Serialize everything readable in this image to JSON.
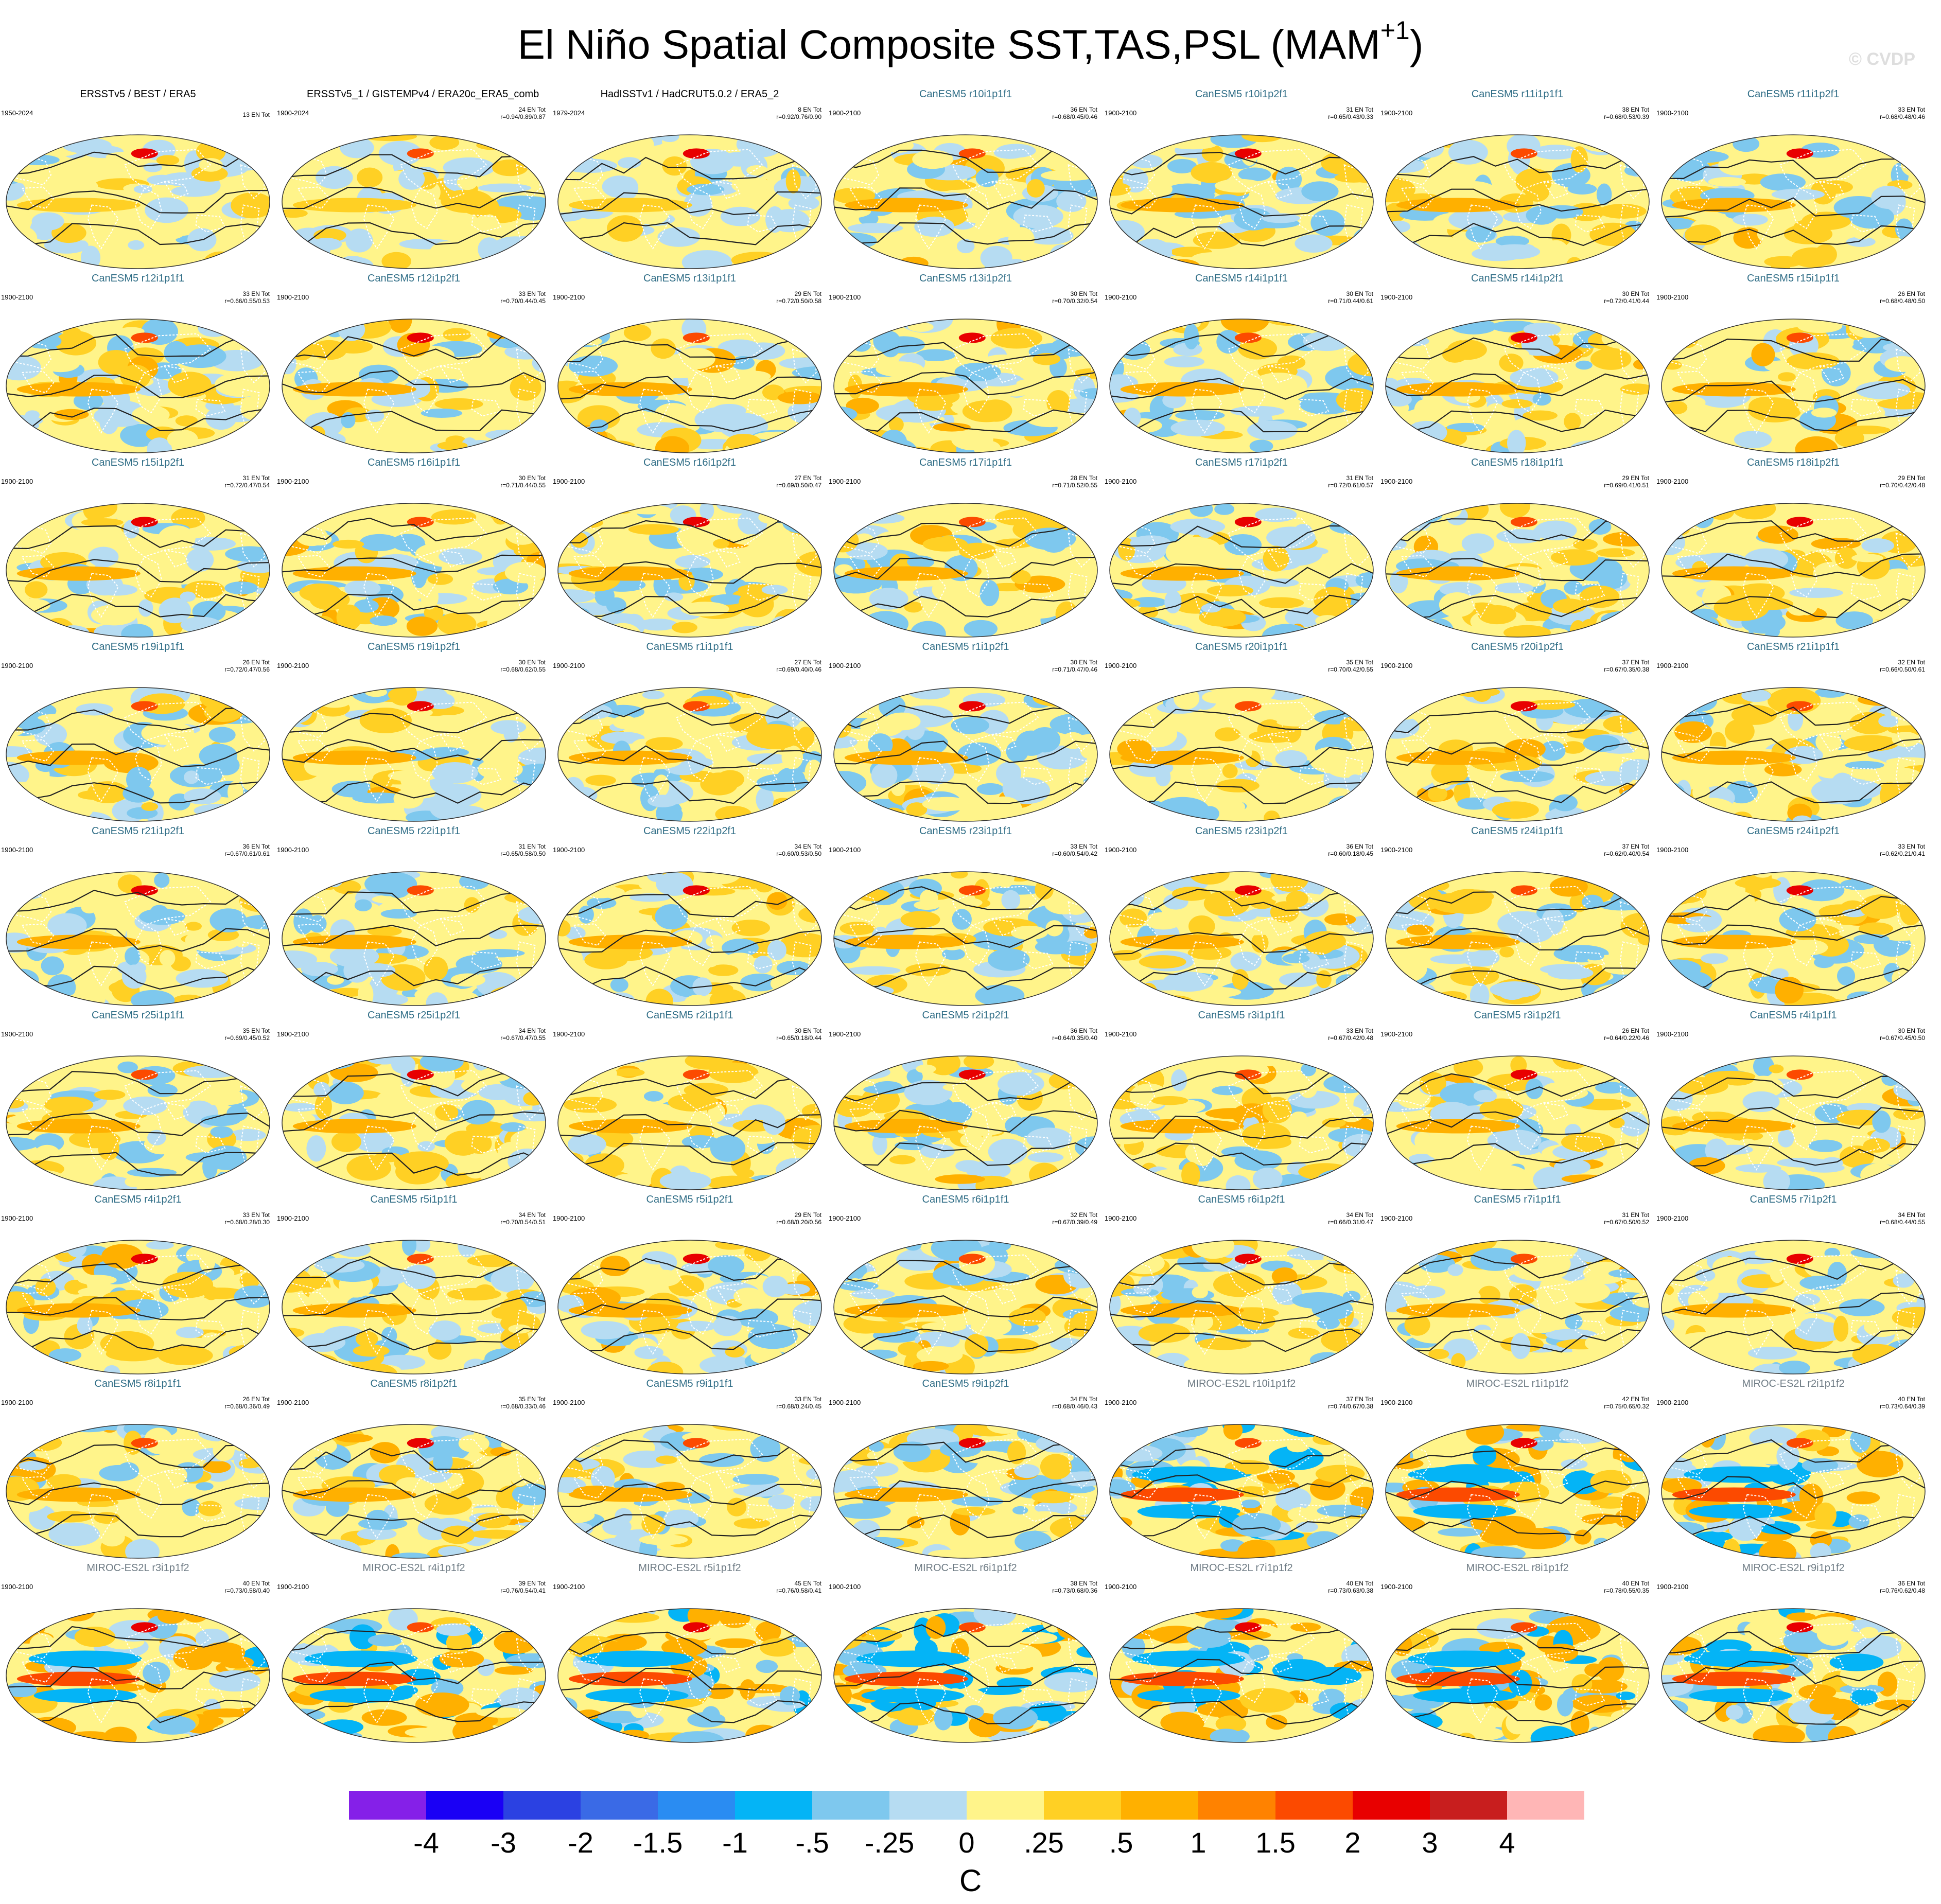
{
  "title": {
    "main": "El Niño Spatial Composite SST,TAS,PSL (MAM",
    "sup": "+1",
    "close": ")"
  },
  "watermark": "© CVDP",
  "colors": {
    "obs_title": "#000000",
    "canesm_title": "#2f6d86",
    "miroc_title": "#6e7b84",
    "land_outline": "#ffffff",
    "contour": "#222222"
  },
  "panels": [
    {
      "title": "ERSSTv5 / BEST / ERA5",
      "kind": "obs",
      "period": "1950-2024",
      "count": "13 EN Tot",
      "stats": "",
      "amp": 0.6
    },
    {
      "title": "ERSSTv5_1 / GISTEMPv4 / ERA20c_ERA5_comb",
      "kind": "obs",
      "period": "1900-2024",
      "count": "24 EN Tot",
      "stats": "r=0.94/0.89/0.87",
      "amp": 0.6
    },
    {
      "title": "HadISSTv1 / HadCRUT5.0.2 / ERA5_2",
      "kind": "obs",
      "period": "1979-2024",
      "count": "8 EN Tot",
      "stats": "r=0.92/0.76/0.90",
      "amp": 0.6
    },
    {
      "title": "CanESM5 r10i1p1f1",
      "kind": "can",
      "period": "1900-2100",
      "count": "36 EN Tot",
      "stats": "r=0.68/0.45/0.46",
      "amp": 1.0
    },
    {
      "title": "CanESM5 r10i1p2f1",
      "kind": "can",
      "period": "1900-2100",
      "count": "31 EN Tot",
      "stats": "r=0.65/0.43/0.33",
      "amp": 1.0
    },
    {
      "title": "CanESM5 r11i1p1f1",
      "kind": "can",
      "period": "1900-2100",
      "count": "38 EN Tot",
      "stats": "r=0.68/0.53/0.39",
      "amp": 1.0
    },
    {
      "title": "CanESM5 r11i1p2f1",
      "kind": "can",
      "period": "1900-2100",
      "count": "33 EN Tot",
      "stats": "r=0.68/0.48/0.46",
      "amp": 1.0
    },
    {
      "title": "CanESM5 r12i1p1f1",
      "kind": "can",
      "period": "1900-2100",
      "count": "33 EN Tot",
      "stats": "r=0.66/0.55/0.53",
      "amp": 1.0
    },
    {
      "title": "CanESM5 r12i1p2f1",
      "kind": "can",
      "period": "1900-2100",
      "count": "33 EN Tot",
      "stats": "r=0.70/0.44/0.45",
      "amp": 1.0
    },
    {
      "title": "CanESM5 r13i1p1f1",
      "kind": "can",
      "period": "1900-2100",
      "count": "29 EN Tot",
      "stats": "r=0.72/0.50/0.58",
      "amp": 1.0
    },
    {
      "title": "CanESM5 r13i1p2f1",
      "kind": "can",
      "period": "1900-2100",
      "count": "30 EN Tot",
      "stats": "r=0.70/0.32/0.54",
      "amp": 1.0
    },
    {
      "title": "CanESM5 r14i1p1f1",
      "kind": "can",
      "period": "1900-2100",
      "count": "30 EN Tot",
      "stats": "r=0.71/0.44/0.61",
      "amp": 1.0
    },
    {
      "title": "CanESM5 r14i1p2f1",
      "kind": "can",
      "period": "1900-2100",
      "count": "30 EN Tot",
      "stats": "r=0.72/0.41/0.44",
      "amp": 1.0
    },
    {
      "title": "CanESM5 r15i1p1f1",
      "kind": "can",
      "period": "1900-2100",
      "count": "26 EN Tot",
      "stats": "r=0.68/0.48/0.50",
      "amp": 1.0
    },
    {
      "title": "CanESM5 r15i1p2f1",
      "kind": "can",
      "period": "1900-2100",
      "count": "31 EN Tot",
      "stats": "r=0.72/0.47/0.54",
      "amp": 1.0
    },
    {
      "title": "CanESM5 r16i1p1f1",
      "kind": "can",
      "period": "1900-2100",
      "count": "30 EN Tot",
      "stats": "r=0.71/0.44/0.55",
      "amp": 1.0
    },
    {
      "title": "CanESM5 r16i1p2f1",
      "kind": "can",
      "period": "1900-2100",
      "count": "27 EN Tot",
      "stats": "r=0.69/0.50/0.47",
      "amp": 1.0
    },
    {
      "title": "CanESM5 r17i1p1f1",
      "kind": "can",
      "period": "1900-2100",
      "count": "28 EN Tot",
      "stats": "r=0.71/0.52/0.55",
      "amp": 1.0
    },
    {
      "title": "CanESM5 r17i1p2f1",
      "kind": "can",
      "period": "1900-2100",
      "count": "31 EN Tot",
      "stats": "r=0.72/0.61/0.57",
      "amp": 1.0
    },
    {
      "title": "CanESM5 r18i1p1f1",
      "kind": "can",
      "period": "1900-2100",
      "count": "29 EN Tot",
      "stats": "r=0.69/0.41/0.51",
      "amp": 1.0
    },
    {
      "title": "CanESM5 r18i1p2f1",
      "kind": "can",
      "period": "1900-2100",
      "count": "29 EN Tot",
      "stats": "r=0.70/0.42/0.48",
      "amp": 1.0
    },
    {
      "title": "CanESM5 r19i1p1f1",
      "kind": "can",
      "period": "1900-2100",
      "count": "26 EN Tot",
      "stats": "r=0.72/0.47/0.56",
      "amp": 1.0
    },
    {
      "title": "CanESM5 r19i1p2f1",
      "kind": "can",
      "period": "1900-2100",
      "count": "30 EN Tot",
      "stats": "r=0.68/0.62/0.55",
      "amp": 1.0
    },
    {
      "title": "CanESM5 r1i1p1f1",
      "kind": "can",
      "period": "1900-2100",
      "count": "27 EN Tot",
      "stats": "r=0.69/0.40/0.46",
      "amp": 1.0
    },
    {
      "title": "CanESM5 r1i1p2f1",
      "kind": "can",
      "period": "1900-2100",
      "count": "30 EN Tot",
      "stats": "r=0.71/0.47/0.46",
      "amp": 1.0
    },
    {
      "title": "CanESM5 r20i1p1f1",
      "kind": "can",
      "period": "1900-2100",
      "count": "35 EN Tot",
      "stats": "r=0.70/0.42/0.55",
      "amp": 1.0
    },
    {
      "title": "CanESM5 r20i1p2f1",
      "kind": "can",
      "period": "1900-2100",
      "count": "37 EN Tot",
      "stats": "r=0.67/0.35/0.38",
      "amp": 1.0
    },
    {
      "title": "CanESM5 r21i1p1f1",
      "kind": "can",
      "period": "1900-2100",
      "count": "32 EN Tot",
      "stats": "r=0.66/0.50/0.61",
      "amp": 1.0
    },
    {
      "title": "CanESM5 r21i1p2f1",
      "kind": "can",
      "period": "1900-2100",
      "count": "36 EN Tot",
      "stats": "r=0.67/0.61/0.61",
      "amp": 1.0
    },
    {
      "title": "CanESM5 r22i1p1f1",
      "kind": "can",
      "period": "1900-2100",
      "count": "31 EN Tot",
      "stats": "r=0.65/0.58/0.50",
      "amp": 1.0
    },
    {
      "title": "CanESM5 r22i1p2f1",
      "kind": "can",
      "period": "1900-2100",
      "count": "34 EN Tot",
      "stats": "r=0.60/0.53/0.50",
      "amp": 1.0
    },
    {
      "title": "CanESM5 r23i1p1f1",
      "kind": "can",
      "period": "1900-2100",
      "count": "33 EN Tot",
      "stats": "r=0.60/0.54/0.42",
      "amp": 1.0
    },
    {
      "title": "CanESM5 r23i1p2f1",
      "kind": "can",
      "period": "1900-2100",
      "count": "36 EN Tot",
      "stats": "r=0.60/0.18/0.45",
      "amp": 1.0
    },
    {
      "title": "CanESM5 r24i1p1f1",
      "kind": "can",
      "period": "1900-2100",
      "count": "37 EN Tot",
      "stats": "r=0.62/0.40/0.54",
      "amp": 1.0
    },
    {
      "title": "CanESM5 r24i1p2f1",
      "kind": "can",
      "period": "1900-2100",
      "count": "33 EN Tot",
      "stats": "r=0.62/0.21/0.41",
      "amp": 1.0
    },
    {
      "title": "CanESM5 r25i1p1f1",
      "kind": "can",
      "period": "1900-2100",
      "count": "35 EN Tot",
      "stats": "r=0.69/0.45/0.52",
      "amp": 1.0
    },
    {
      "title": "CanESM5 r25i1p2f1",
      "kind": "can",
      "period": "1900-2100",
      "count": "34 EN Tot",
      "stats": "r=0.67/0.47/0.55",
      "amp": 1.0
    },
    {
      "title": "CanESM5 r2i1p1f1",
      "kind": "can",
      "period": "1900-2100",
      "count": "30 EN Tot",
      "stats": "r=0.65/0.18/0.44",
      "amp": 1.0
    },
    {
      "title": "CanESM5 r2i1p2f1",
      "kind": "can",
      "period": "1900-2100",
      "count": "36 EN Tot",
      "stats": "r=0.64/0.35/0.40",
      "amp": 1.0
    },
    {
      "title": "CanESM5 r3i1p1f1",
      "kind": "can",
      "period": "1900-2100",
      "count": "33 EN Tot",
      "stats": "r=0.67/0.42/0.48",
      "amp": 1.0
    },
    {
      "title": "CanESM5 r3i1p2f1",
      "kind": "can",
      "period": "1900-2100",
      "count": "26 EN Tot",
      "stats": "r=0.64/0.22/0.46",
      "amp": 1.0
    },
    {
      "title": "CanESM5 r4i1p1f1",
      "kind": "can",
      "period": "1900-2100",
      "count": "30 EN Tot",
      "stats": "r=0.67/0.45/0.50",
      "amp": 1.0
    },
    {
      "title": "CanESM5 r4i1p2f1",
      "kind": "can",
      "period": "1900-2100",
      "count": "33 EN Tot",
      "stats": "r=0.68/0.28/0.30",
      "amp": 1.0
    },
    {
      "title": "CanESM5 r5i1p1f1",
      "kind": "can",
      "period": "1900-2100",
      "count": "34 EN Tot",
      "stats": "r=0.70/0.54/0.51",
      "amp": 1.0
    },
    {
      "title": "CanESM5 r5i1p2f1",
      "kind": "can",
      "period": "1900-2100",
      "count": "29 EN Tot",
      "stats": "r=0.68/0.20/0.56",
      "amp": 1.0
    },
    {
      "title": "CanESM5 r6i1p1f1",
      "kind": "can",
      "period": "1900-2100",
      "count": "32 EN Tot",
      "stats": "r=0.67/0.39/0.49",
      "amp": 1.0
    },
    {
      "title": "CanESM5 r6i1p2f1",
      "kind": "can",
      "period": "1900-2100",
      "count": "34 EN Tot",
      "stats": "r=0.66/0.31/0.47",
      "amp": 1.0
    },
    {
      "title": "CanESM5 r7i1p1f1",
      "kind": "can",
      "period": "1900-2100",
      "count": "31 EN Tot",
      "stats": "r=0.67/0.50/0.52",
      "amp": 1.0
    },
    {
      "title": "CanESM5 r7i1p2f1",
      "kind": "can",
      "period": "1900-2100",
      "count": "34 EN Tot",
      "stats": "r=0.68/0.44/0.55",
      "amp": 1.0
    },
    {
      "title": "CanESM5 r8i1p1f1",
      "kind": "can",
      "period": "1900-2100",
      "count": "26 EN Tot",
      "stats": "r=0.68/0.36/0.49",
      "amp": 1.0
    },
    {
      "title": "CanESM5 r8i1p2f1",
      "kind": "can",
      "period": "1900-2100",
      "count": "35 EN Tot",
      "stats": "r=0.68/0.33/0.46",
      "amp": 1.0
    },
    {
      "title": "CanESM5 r9i1p1f1",
      "kind": "can",
      "period": "1900-2100",
      "count": "33 EN Tot",
      "stats": "r=0.68/0.24/0.45",
      "amp": 1.0
    },
    {
      "title": "CanESM5 r9i1p2f1",
      "kind": "can",
      "period": "1900-2100",
      "count": "34 EN Tot",
      "stats": "r=0.68/0.46/0.43",
      "amp": 1.0
    },
    {
      "title": "MIROC-ES2L r10i1p1f2",
      "kind": "mir",
      "period": "1900-2100",
      "count": "37 EN Tot",
      "stats": "r=0.74/0.67/0.38",
      "amp": 2.0
    },
    {
      "title": "MIROC-ES2L r1i1p1f2",
      "kind": "mir",
      "period": "1900-2100",
      "count": "42 EN Tot",
      "stats": "r=0.75/0.65/0.32",
      "amp": 2.0
    },
    {
      "title": "MIROC-ES2L r2i1p1f2",
      "kind": "mir",
      "period": "1900-2100",
      "count": "40 EN Tot",
      "stats": "r=0.73/0.64/0.39",
      "amp": 2.0
    },
    {
      "title": "MIROC-ES2L r3i1p1f2",
      "kind": "mir",
      "period": "1900-2100",
      "count": "40 EN Tot",
      "stats": "r=0.73/0.58/0.40",
      "amp": 2.0
    },
    {
      "title": "MIROC-ES2L r4i1p1f2",
      "kind": "mir",
      "period": "1900-2100",
      "count": "39 EN Tot",
      "stats": "r=0.76/0.54/0.41",
      "amp": 2.0
    },
    {
      "title": "MIROC-ES2L r5i1p1f2",
      "kind": "mir",
      "period": "1900-2100",
      "count": "45 EN Tot",
      "stats": "r=0.76/0.58/0.41",
      "amp": 2.0
    },
    {
      "title": "MIROC-ES2L r6i1p1f2",
      "kind": "mir",
      "period": "1900-2100",
      "count": "38 EN Tot",
      "stats": "r=0.73/0.68/0.36",
      "amp": 2.0
    },
    {
      "title": "MIROC-ES2L r7i1p1f2",
      "kind": "mir",
      "period": "1900-2100",
      "count": "40 EN Tot",
      "stats": "r=0.73/0.63/0.38",
      "amp": 2.0
    },
    {
      "title": "MIROC-ES2L r8i1p1f2",
      "kind": "mir",
      "period": "1900-2100",
      "count": "40 EN Tot",
      "stats": "r=0.78/0.55/0.35",
      "amp": 2.0
    },
    {
      "title": "MIROC-ES2L r9i1p1f2",
      "kind": "mir",
      "period": "1900-2100",
      "count": "36 EN Tot",
      "stats": "r=0.76/0.62/0.48",
      "amp": 2.0
    }
  ],
  "chart_data": {
    "type": "heatmap",
    "title": "El Niño Spatial Composite SST,TAS,PSL (MAM+1)",
    "units": "C",
    "colorbar": {
      "tick_labels": [
        "-4",
        "-3",
        "-2",
        "-1.5",
        "-1",
        "-.5",
        "-.25",
        "0",
        ".25",
        ".5",
        "1",
        "1.5",
        "2",
        "3",
        "4"
      ],
      "colors": [
        "#8520e8",
        "#1a00f5",
        "#2b41e2",
        "#3a6ae6",
        "#2a8cf2",
        "#04b4f6",
        "#7ec8ee",
        "#b6dcf2",
        "#fff48a",
        "#ffd024",
        "#ffb000",
        "#ff8200",
        "#fc4a00",
        "#e80000",
        "#c81e1e",
        "#ffb6b6"
      ]
    },
    "layout": {
      "rows": 9,
      "cols": 7
    }
  }
}
